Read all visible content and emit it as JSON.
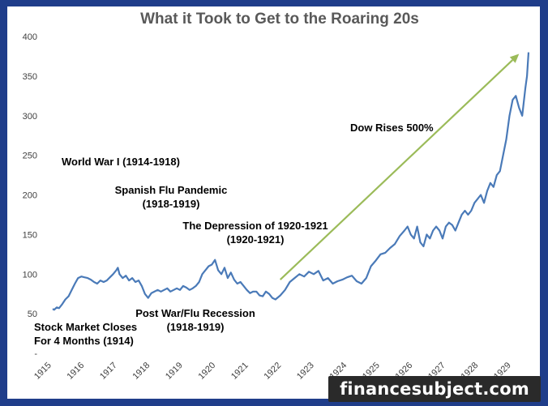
{
  "chart_data": {
    "type": "line",
    "title": "What it Took to Get to the Roaring 20s",
    "xlabel": "",
    "ylabel": "",
    "x_ticks": [
      "1915",
      "1916",
      "1917",
      "1918",
      "1919",
      "1920",
      "1921",
      "1922",
      "1923",
      "1924",
      "1925",
      "1926",
      "1927",
      "1928",
      "1929"
    ],
    "y_ticks": [
      "50",
      "100",
      "150",
      "200",
      "250",
      "300",
      "350",
      "400"
    ],
    "y_extra_tick": "-",
    "ylim": [
      0,
      400
    ],
    "xlim": [
      1914.85,
      1929.95
    ],
    "grid": false,
    "line_color": "#4a7ab8",
    "arrow_color": "#9bbb59",
    "series": [
      {
        "x": [
          1914.95,
          1915.0,
          1915.08,
          1915.15,
          1915.25,
          1915.35,
          1915.45,
          1915.55,
          1915.65,
          1915.75,
          1915.85,
          1915.95,
          1916.05,
          1916.15,
          1916.25,
          1916.35,
          1916.45,
          1916.55,
          1916.65,
          1916.75,
          1916.85,
          1916.95,
          1917.0,
          1917.05,
          1917.15,
          1917.25,
          1917.35,
          1917.45,
          1917.55,
          1917.65,
          1917.75,
          1917.85,
          1917.95,
          1918.05,
          1918.15,
          1918.25,
          1918.35,
          1918.45,
          1918.55,
          1918.65,
          1918.75,
          1918.85,
          1918.95,
          1919.05,
          1919.15,
          1919.25,
          1919.35,
          1919.45,
          1919.55,
          1919.65,
          1919.75,
          1919.85,
          1919.95,
          1920.05,
          1920.15,
          1920.25,
          1920.35,
          1920.45,
          1920.55,
          1920.65,
          1920.75,
          1920.85,
          1920.95,
          1921.05,
          1921.15,
          1921.25,
          1921.35,
          1921.45,
          1921.55,
          1921.65,
          1921.75,
          1921.85,
          1921.95,
          1922.1,
          1922.25,
          1922.4,
          1922.55,
          1922.7,
          1922.85,
          1923.0,
          1923.15,
          1923.3,
          1923.45,
          1923.6,
          1923.75,
          1923.9,
          1924.05,
          1924.2,
          1924.35,
          1924.5,
          1924.65,
          1924.8,
          1924.95,
          1925.1,
          1925.25,
          1925.4,
          1925.55,
          1925.7,
          1925.85,
          1926.0,
          1926.1,
          1926.2,
          1926.3,
          1926.4,
          1926.5,
          1926.6,
          1926.7,
          1926.8,
          1926.9,
          1927.0,
          1927.1,
          1927.2,
          1927.3,
          1927.4,
          1927.5,
          1927.6,
          1927.7,
          1927.8,
          1927.9,
          1928.0,
          1928.1,
          1928.2,
          1928.3,
          1928.4,
          1928.5,
          1928.6,
          1928.7,
          1928.8,
          1928.9,
          1929.0,
          1929.1,
          1929.2,
          1929.3,
          1929.4,
          1929.5,
          1929.6,
          1929.7,
          1929.8,
          1929.85,
          1929.9
        ],
        "y": [
          56,
          55,
          58,
          57,
          62,
          68,
          72,
          80,
          88,
          95,
          97,
          96,
          95,
          93,
          90,
          88,
          92,
          90,
          92,
          96,
          100,
          105,
          108,
          100,
          95,
          98,
          92,
          95,
          90,
          92,
          85,
          75,
          70,
          76,
          78,
          80,
          78,
          80,
          82,
          78,
          80,
          82,
          80,
          85,
          83,
          80,
          82,
          85,
          90,
          100,
          105,
          110,
          112,
          118,
          105,
          100,
          108,
          95,
          102,
          93,
          88,
          90,
          85,
          80,
          76,
          78,
          78,
          73,
          72,
          78,
          75,
          70,
          68,
          73,
          80,
          90,
          95,
          100,
          97,
          103,
          100,
          104,
          92,
          95,
          88,
          91,
          93,
          96,
          98,
          91,
          88,
          95,
          110,
          117,
          125,
          127,
          133,
          138,
          148,
          155,
          160,
          150,
          145,
          160,
          140,
          135,
          150,
          145,
          155,
          160,
          155,
          145,
          160,
          165,
          162,
          155,
          165,
          175,
          180,
          175,
          180,
          190,
          195,
          200,
          190,
          205,
          215,
          210,
          225,
          230,
          250,
          270,
          300,
          320,
          325,
          310,
          300,
          335,
          350,
          380
        ]
      }
    ],
    "annotations": [
      {
        "id": "war",
        "lines": [
          "World War I (1914-1918)"
        ]
      },
      {
        "id": "flu",
        "lines": [
          "Spanish Flu Pandemic",
          "(1918-1919)"
        ]
      },
      {
        "id": "depression",
        "lines": [
          "The Depression of 1920-1921",
          "(1920-1921)"
        ]
      },
      {
        "id": "dow",
        "lines": [
          "Dow Rises 500%"
        ]
      },
      {
        "id": "recession",
        "lines": [
          "Post War/Flu Recession",
          "(1918-1919)"
        ]
      },
      {
        "id": "closes",
        "lines": [
          "Stock Market Closes",
          "For 4 Months (1914)"
        ]
      }
    ],
    "arrow": {
      "from": [
        1922.1,
        93
      ],
      "to": [
        1929.6,
        378
      ]
    }
  },
  "watermark": "financesubject.com"
}
